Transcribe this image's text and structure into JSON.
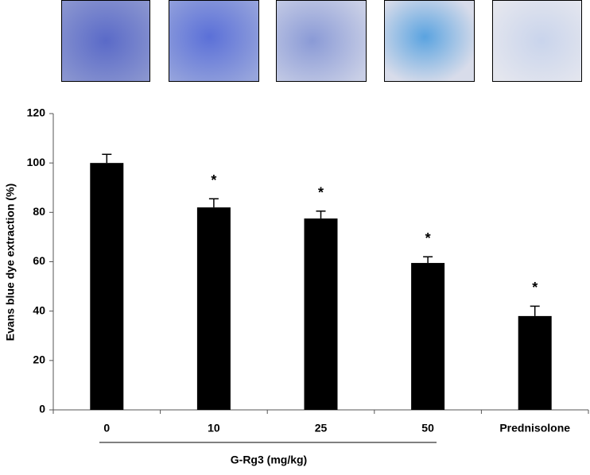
{
  "chart_data": {
    "type": "bar",
    "categories": [
      "0",
      "10",
      "25",
      "50",
      "Prednisolone"
    ],
    "values": [
      100,
      82,
      77.5,
      59.5,
      38
    ],
    "errors": [
      3.5,
      3.5,
      3,
      2.5,
      4
    ],
    "significance": [
      null,
      "*",
      "*",
      "*",
      "*"
    ],
    "color": "#000000",
    "y_label": "Evans blue dye extraction (%)",
    "x_label": "G-Rg3 (mg/kg)",
    "ylim": [
      0,
      120
    ],
    "yticks": [
      0,
      20,
      40,
      60,
      80,
      100,
      120
    ]
  }
}
